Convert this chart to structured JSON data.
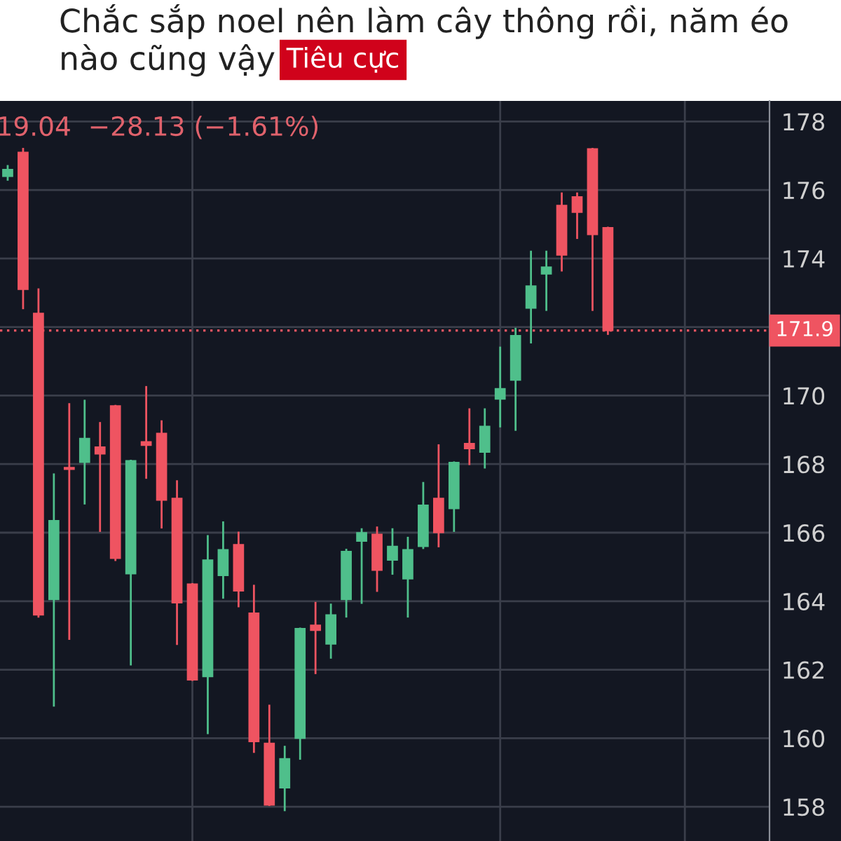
{
  "chart_data": {
    "type": "candlestick",
    "title": "Chắc sắp noel nên làm cây thông rồi, năm éo nào cũng vậy",
    "subtitle": "Tiêu cực",
    "annotations": [
      "19.04  −28.13 (−1.61%)"
    ],
    "categories": [
      null,
      null,
      null,
      null,
      null,
      null,
      null,
      null,
      null,
      null,
      null,
      null,
      null,
      null,
      null,
      null,
      null,
      null,
      null,
      null,
      null,
      null,
      null,
      null,
      null,
      null,
      null,
      null,
      null,
      null,
      null,
      null,
      null,
      null,
      null,
      null,
      null,
      null,
      null,
      null,
      null,
      null,
      null,
      null,
      null,
      null,
      null,
      null,
      null,
      null
    ],
    "ohlc": [
      [
        176.4,
        176.7,
        176.3,
        176.6
      ],
      [
        177.1,
        177.2,
        172.55,
        173.1
      ],
      [
        172.4,
        173.1,
        163.55,
        163.6
      ],
      [
        164.05,
        167.7,
        160.95,
        166.35
      ],
      [
        167.9,
        169.75,
        162.9,
        167.85
      ],
      [
        168.05,
        169.85,
        166.85,
        168.75
      ],
      [
        168.5,
        169.2,
        166.05,
        168.3
      ],
      [
        169.7,
        169.7,
        165.2,
        165.25
      ],
      [
        164.8,
        168.1,
        162.15,
        168.1
      ],
      [
        168.65,
        170.25,
        167.6,
        168.55
      ],
      [
        168.9,
        169.25,
        166.15,
        166.95
      ],
      [
        167.0,
        167.5,
        162.75,
        163.95
      ],
      [
        164.5,
        164.5,
        161.7,
        161.7
      ],
      [
        161.8,
        165.9,
        160.15,
        165.2
      ],
      [
        164.75,
        166.3,
        164.1,
        165.5
      ],
      [
        165.65,
        166.0,
        163.85,
        164.3
      ],
      [
        163.65,
        164.45,
        159.6,
        159.9
      ],
      [
        159.85,
        160.95,
        158.05,
        158.05
      ],
      [
        158.55,
        159.75,
        157.9,
        159.4
      ],
      [
        160.0,
        163.2,
        159.4,
        163.2
      ],
      [
        163.3,
        163.95,
        161.9,
        163.15
      ],
      [
        162.75,
        163.9,
        162.35,
        163.6
      ],
      [
        164.05,
        165.5,
        163.55,
        165.45
      ],
      [
        165.75,
        166.1,
        163.95,
        166.0
      ],
      [
        165.95,
        166.15,
        164.3,
        164.9
      ],
      [
        165.2,
        166.1,
        164.8,
        165.6
      ],
      [
        164.65,
        165.85,
        163.55,
        165.5
      ],
      [
        165.6,
        167.45,
        165.55,
        166.8
      ],
      [
        167.0,
        168.55,
        165.6,
        166.0
      ],
      [
        166.7,
        168.05,
        166.05,
        168.05
      ],
      [
        168.6,
        169.6,
        168.0,
        168.45
      ],
      [
        168.35,
        169.6,
        167.9,
        169.1
      ],
      [
        169.9,
        171.4,
        169.1,
        170.2
      ],
      [
        170.45,
        171.95,
        169.0,
        171.75
      ],
      [
        172.55,
        174.2,
        171.55,
        173.2
      ],
      [
        173.55,
        174.2,
        172.5,
        173.75
      ],
      [
        175.55,
        175.9,
        173.65,
        174.1
      ],
      [
        175.8,
        175.9,
        174.6,
        175.35
      ],
      [
        177.2,
        177.2,
        172.5,
        174.7
      ],
      [
        174.9,
        174.9,
        171.8,
        171.9
      ],
      null,
      null,
      null,
      null,
      null,
      null,
      null,
      null,
      null,
      null
    ],
    "colors": [
      "#4fbf8b",
      "#ef5461",
      "#ef5461",
      "#4fbf8b",
      "#ef5461",
      "#4fbf8b",
      "#ef5461",
      "#ef5461",
      "#4fbf8b",
      "#ef5461",
      "#ef5461",
      "#ef5461",
      "#ef5461",
      "#4fbf8b",
      "#4fbf8b",
      "#ef5461",
      "#ef5461",
      "#ef5461",
      "#4fbf8b",
      "#4fbf8b",
      "#ef5461",
      "#4fbf8b",
      "#4fbf8b",
      "#4fbf8b",
      "#ef5461",
      "#4fbf8b",
      "#4fbf8b",
      "#4fbf8b",
      "#ef5461",
      "#4fbf8b",
      "#ef5461",
      "#4fbf8b",
      "#4fbf8b",
      "#4fbf8b",
      "#4fbf8b",
      "#4fbf8b",
      "#ef5461",
      "#ef5461",
      "#ef5461",
      "#ef5461",
      null,
      null,
      null,
      null,
      null,
      null,
      null,
      null,
      null,
      null
    ],
    "ylim": [
      157.0,
      178.6
    ],
    "yticks": [
      158,
      160,
      162,
      164,
      166,
      168,
      170,
      {
        "value": 172,
        "label": null
      },
      174,
      176,
      178
    ],
    "ref_lines": [
      {
        "axis": "y",
        "value": 171.9,
        "label": "171.9",
        "color": "#ef5461",
        "line_style": "dotted"
      }
    ],
    "grid": true,
    "tick_labels": "y"
  }
}
